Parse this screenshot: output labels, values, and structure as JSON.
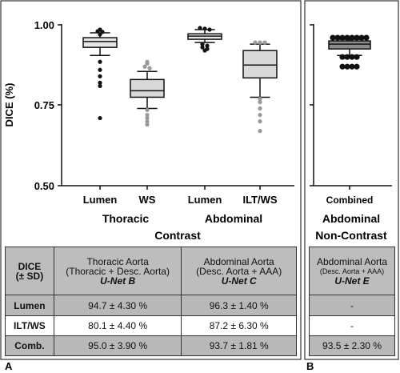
{
  "chart_data": [
    {
      "type": "box",
      "ylabel": "DICE (%)",
      "ylim": [
        0.5,
        1.0
      ],
      "yticks": [
        "0.50",
        "0.75",
        "1.00"
      ],
      "categories": [
        "Lumen",
        "WS",
        "Lumen",
        "ILT/WS"
      ],
      "groups": [
        "Thoracic",
        "Abdominal"
      ],
      "xlabel": "Contrast",
      "boxes": [
        {
          "category": "Lumen",
          "group": "Thoracic",
          "fill": "#e6e6e6",
          "dot": "#111111",
          "whisker_low": 0.905,
          "q1": 0.93,
          "median": 0.948,
          "q3": 0.96,
          "whisker_high": 0.975,
          "outliers": [
            0.98,
            0.985,
            0.978,
            0.97,
            0.885,
            0.86,
            0.84,
            0.82,
            0.81,
            0.71
          ]
        },
        {
          "category": "WS",
          "group": "Thoracic",
          "fill": "#d9d9d9",
          "dot": "#999999",
          "whisker_low": 0.74,
          "q1": 0.775,
          "median": 0.795,
          "q3": 0.83,
          "whisker_high": 0.855,
          "outliers": [
            0.87,
            0.88,
            0.885,
            0.865,
            0.735,
            0.72,
            0.71,
            0.7,
            0.69
          ]
        },
        {
          "category": "Lumen",
          "group": "Abdominal",
          "fill": "#e6e6e6",
          "dot": "#111111",
          "whisker_low": 0.945,
          "q1": 0.955,
          "median": 0.965,
          "q3": 0.972,
          "whisker_high": 0.985,
          "outliers": [
            0.99,
            0.988,
            0.985,
            0.94,
            0.935,
            0.93,
            0.925,
            0.92
          ]
        },
        {
          "category": "ILT/WS",
          "group": "Abdominal",
          "fill": "#d9d9d9",
          "dot": "#999999",
          "whisker_low": 0.775,
          "q1": 0.835,
          "median": 0.875,
          "q3": 0.92,
          "whisker_high": 0.94,
          "outliers": [
            0.945,
            0.945,
            0.945,
            0.77,
            0.76,
            0.74,
            0.72,
            0.7,
            0.67
          ]
        }
      ]
    },
    {
      "type": "box",
      "ylim": [
        0.5,
        1.0
      ],
      "categories": [
        "Combined"
      ],
      "xlabel": "Abdominal Non-Contrast",
      "boxes": [
        {
          "category": "Combined",
          "fill": "#8c8c8c",
          "dot": "#111111",
          "whisker_low": 0.905,
          "q1": 0.925,
          "median": 0.94,
          "q3": 0.95,
          "whisker_high": 0.955,
          "outliers": [
            0.96,
            0.96,
            0.96,
            0.96,
            0.96,
            0.96,
            0.96,
            0.96,
            0.9,
            0.9,
            0.9,
            0.9,
            0.87,
            0.87,
            0.87,
            0.87
          ]
        }
      ]
    }
  ],
  "panelA": {
    "group_label_thoracic": "Thoracic",
    "group_label_abdominal": "Abdominal",
    "xlabel": "Contrast",
    "letter": "A"
  },
  "panelB": {
    "xlabel_line1": "Abdominal",
    "xlabel_line2": "Non-Contrast",
    "letter": "B"
  },
  "tableA": {
    "header_label_line1": "DICE",
    "header_label_line2": "(± SD)",
    "col1_line1": "Thoracic Aorta",
    "col1_line2": "(Thoracic + Desc. Aorta)",
    "col1_model": "U-Net B",
    "col2_line1": "Abdominal Aorta",
    "col2_line2": "(Desc. Aorta + AAA)",
    "col2_model": "U-Net C",
    "rows": [
      {
        "label": "Lumen",
        "thoracic": "94.7 ± 4.30 %",
        "abdominal": "96.3 ± 1.40 %"
      },
      {
        "label": "ILT/WS",
        "thoracic": "80.1 ± 4.40 %",
        "abdominal": "87.2 ± 6.30 %"
      },
      {
        "label": "Comb.",
        "thoracic": "95.0 ± 3.90 %",
        "abdominal": "93.7 ± 1.81 %"
      }
    ]
  },
  "tableB": {
    "col_line1": "Abdominal Aorta",
    "col_line2": "(Desc. Aorta + AAA)",
    "col_model": "U-Net E",
    "rows": [
      "-",
      "-",
      "93.5 ± 2.30 %"
    ]
  }
}
